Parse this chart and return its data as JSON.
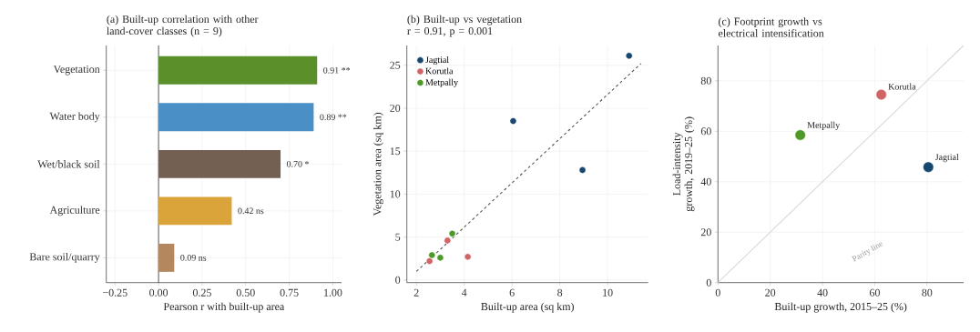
{
  "chart_data": [
    {
      "type": "bar",
      "orientation": "horizontal",
      "title": "(a) Built-up correlation with other land-cover classes (n = 9)",
      "xlabel": "Pearson r with built-up area",
      "categories": [
        "Vegetation",
        "Water body",
        "Wet/black soil",
        "Agriculture",
        "Bare soil/quarry"
      ],
      "values": [
        0.91,
        0.89,
        0.7,
        0.42,
        0.09
      ],
      "colors": [
        "#5a8f29",
        "#4a8fc6",
        "#736052",
        "#dba43a",
        "#b5875e"
      ],
      "value_labels": [
        "0.91 **",
        "0.89 **",
        "0.70 *",
        "0.42 ns",
        "0.09 ns"
      ],
      "xlim": [
        -0.3,
        1.05
      ],
      "xticks": [
        {
          "value": -0.25,
          "label": "−0.25"
        },
        {
          "value": 0,
          "label": "0.00"
        },
        {
          "value": 0.25,
          "label": "0.25"
        },
        {
          "value": 0.5,
          "label": "0.50"
        },
        {
          "value": 0.75,
          "label": "0.75"
        },
        {
          "value": 1,
          "label": "1.00"
        }
      ],
      "grid": true,
      "ref_lines": [
        {
          "axis": "x",
          "value": 0,
          "color": "#333333"
        }
      ]
    },
    {
      "type": "scatter",
      "title": "(b) Built-up vs vegetation",
      "subtitle": "r = 0.91, p = 0.001",
      "xlabel": "Built-up area (sq km)",
      "ylabel": "Vegetation area (sq km)",
      "series": [
        {
          "name": "Jagtial",
          "color": "#17466e",
          "marker": "circle",
          "x": [
            6.05,
            8.95,
            10.9
          ],
          "values": [
            18.5,
            12.8,
            26.1
          ]
        },
        {
          "name": "Korutla",
          "color": "#d06466",
          "marker": "circle",
          "x": [
            2.55,
            3.3,
            4.15
          ],
          "values": [
            2.2,
            4.6,
            2.7
          ]
        },
        {
          "name": "Metpally",
          "color": "#4e9a28",
          "marker": "circle",
          "x": [
            2.65,
            3.0,
            3.5
          ],
          "values": [
            2.9,
            2.6,
            5.4
          ]
        },
        {
          "type": "line",
          "color": "#555555",
          "line_style": "dashed",
          "marker": "none",
          "x": [
            2,
            11.4
          ],
          "values": [
            1.0,
            25.2
          ]
        }
      ],
      "xlim": [
        1.6,
        11.7
      ],
      "ylim": [
        -0.3,
        27.3
      ],
      "xticks": [
        2,
        4,
        6,
        8,
        10
      ],
      "yticks": [
        0,
        5,
        10,
        15,
        20,
        25
      ],
      "grid": true,
      "legend": "top left"
    },
    {
      "type": "scatter",
      "title": "(c) Footprint growth vs electrical intensification",
      "xlabel": "Built-up growth, 2015–25 (%)",
      "ylabel": "Load-intensity growth, 2019–25 (%)",
      "series": [
        {
          "type": "line",
          "color": "#d9d9d9",
          "marker": "none",
          "x": [
            0,
            94
          ],
          "values": [
            0,
            94
          ]
        },
        {
          "name": "Metpally",
          "color": "#4e9a28",
          "marker": "circle",
          "x": [
            31.5
          ],
          "values": [
            58.5
          ]
        },
        {
          "name": "Korutla",
          "color": "#d06466",
          "marker": "circle",
          "x": [
            62.5
          ],
          "values": [
            74.5
          ]
        },
        {
          "name": "Jagtial",
          "color": "#17466e",
          "marker": "circle",
          "x": [
            80.5
          ],
          "values": [
            45.8
          ]
        }
      ],
      "xlim": [
        0,
        94
      ],
      "ylim": [
        0,
        94
      ],
      "xticks": [
        0,
        20,
        40,
        60,
        80
      ],
      "yticks": [
        0,
        20,
        40,
        60,
        80
      ],
      "grid": true,
      "legend": false,
      "annotations": [
        "Parity line"
      ]
    }
  ]
}
